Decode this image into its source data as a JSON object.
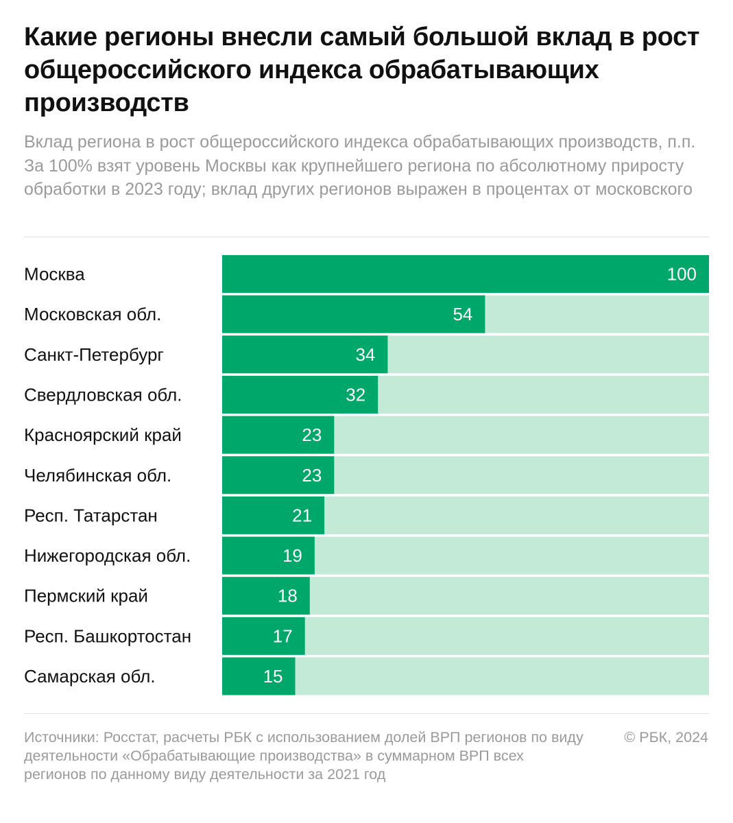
{
  "title": "Какие регионы внесли самый большой вклад в рост общероссийского индекса обрабатывающих производств",
  "subtitle": "Вклад региона в рост общероссийского индекса обрабатывающих производств, п.п. За 100% взят уровень Москвы как крупнейшего региона по абсолютному приросту обработки в 2023 году; вклад других регионов выражен в процентах от московского",
  "chart_data": {
    "type": "bar",
    "orientation": "horizontal",
    "categories": [
      "Москва",
      "Московская обл.",
      "Санкт-Петербург",
      "Свердловская обл.",
      "Красноярский край",
      "Челябинская обл.",
      "Респ. Татарстан",
      "Нижегородская обл.",
      "Пермский край",
      "Респ. Башкортостан",
      "Самарская обл."
    ],
    "values": [
      100,
      54,
      34,
      32,
      23,
      23,
      21,
      19,
      18,
      17,
      15
    ],
    "xlim": [
      0,
      100
    ],
    "grid": false,
    "data_labels": true,
    "colors": {
      "bar": "#00a76a",
      "track": "#c2ead7"
    }
  },
  "footer": {
    "source": "Источники: Росстат, расчеты РБК с использованием долей ВРП регионов по виду деятельности «Обрабатывающие производства» в суммарном ВРП всех регионов по данному виду деятельности за 2021 год",
    "copyright": "© РБК, 2024"
  }
}
